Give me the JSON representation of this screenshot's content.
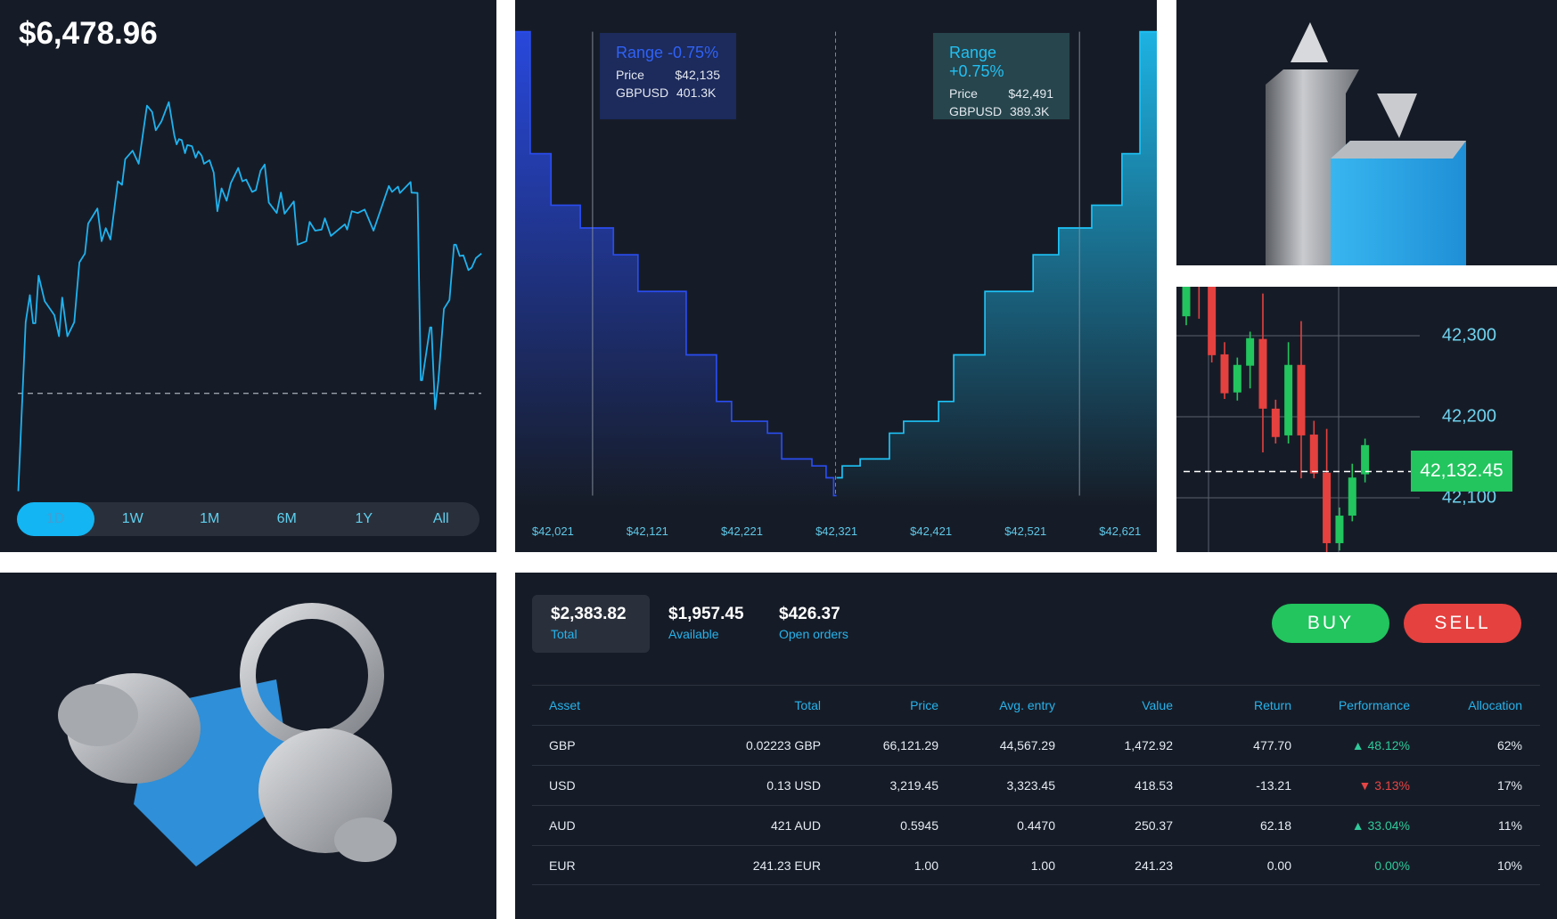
{
  "portfolio": {
    "balance": "$6,478.96",
    "timeframes": [
      "1D",
      "1W",
      "1M",
      "6M",
      "1Y",
      "All"
    ],
    "active_timeframe": "1D",
    "line_color": "#1fb2ef"
  },
  "line_chart": {
    "type": "line",
    "points": [
      [
        0,
        0.5
      ],
      [
        1.6,
        48.5
      ],
      [
        2.5,
        56.2
      ],
      [
        3.2,
        48.2
      ],
      [
        3.7,
        48.2
      ],
      [
        4.4,
        61.7
      ],
      [
        5.7,
        54.5
      ],
      [
        7.8,
        50.5
      ],
      [
        8.8,
        44.5
      ],
      [
        9.5,
        55.5
      ],
      [
        10.6,
        44.5
      ],
      [
        12.1,
        48.5
      ],
      [
        13.2,
        65.5
      ],
      [
        14.4,
        68
      ],
      [
        15.1,
        76.5
      ],
      [
        17.1,
        80.8
      ],
      [
        18.0,
        71.5
      ],
      [
        18.9,
        75.2
      ],
      [
        19.9,
        72
      ],
      [
        21.5,
        88.5
      ],
      [
        22.4,
        87.5
      ],
      [
        23.1,
        94.8
      ],
      [
        24.7,
        97.2
      ],
      [
        26.0,
        93.5
      ],
      [
        27.8,
        110
      ],
      [
        28.9,
        108.2
      ],
      [
        29.7,
        103
      ],
      [
        30.9,
        105.5
      ],
      [
        32.5,
        111
      ],
      [
        33.7,
        101.5
      ],
      [
        34.2,
        99
      ],
      [
        34.7,
        100.5
      ],
      [
        35.3,
        100.2
      ],
      [
        36.0,
        96.5
      ],
      [
        36.5,
        98.8
      ],
      [
        37.5,
        98.5
      ],
      [
        38.3,
        95.2
      ],
      [
        38.9,
        97
      ],
      [
        39.6,
        95.8
      ],
      [
        40.1,
        93.5
      ],
      [
        41.3,
        94.5
      ],
      [
        42.2,
        91
      ],
      [
        43.0,
        80
      ],
      [
        43.9,
        86.5
      ],
      [
        45.0,
        83
      ],
      [
        45.9,
        88
      ],
      [
        47.5,
        92.3
      ],
      [
        48.4,
        88.5
      ],
      [
        49.2,
        89
      ],
      [
        50.5,
        85.5
      ],
      [
        51.3,
        86
      ],
      [
        52.3,
        91.5
      ],
      [
        53.2,
        93.3
      ],
      [
        54.1,
        82.5
      ],
      [
        55.8,
        79.5
      ],
      [
        56.7,
        85.3
      ],
      [
        57.5,
        79.3
      ],
      [
        59.5,
        82.8
      ],
      [
        60.3,
        70.5
      ],
      [
        62.2,
        71.5
      ],
      [
        62.9,
        77
      ],
      [
        64.1,
        74.5
      ],
      [
        65.5,
        74.8
      ],
      [
        66.2,
        78
      ],
      [
        67.5,
        73
      ],
      [
        70.5,
        76.3
      ],
      [
        71.0,
        74.8
      ],
      [
        72.0,
        80
      ],
      [
        73.3,
        79.5
      ],
      [
        74.8,
        80.5
      ],
      [
        76.7,
        74.5
      ],
      [
        80.0,
        87.2
      ],
      [
        80.7,
        85.5
      ],
      [
        82.0,
        87
      ],
      [
        82.4,
        85.2
      ],
      [
        84.7,
        88.3
      ],
      [
        84.9,
        85.3
      ],
      [
        86.2,
        85.2
      ],
      [
        86.9,
        32
      ],
      [
        87.2,
        32
      ],
      [
        88.9,
        47
      ],
      [
        89.2,
        47
      ],
      [
        90.0,
        23.8
      ],
      [
        90.7,
        32
      ],
      [
        91.9,
        52.3
      ],
      [
        93.1,
        54.8
      ],
      [
        94.1,
        70.5
      ],
      [
        94.5,
        70.5
      ],
      [
        95.3,
        67.3
      ],
      [
        96.1,
        67.5
      ],
      [
        97.2,
        63.3
      ],
      [
        97.9,
        64
      ],
      [
        98.8,
        66.7
      ],
      [
        100,
        68
      ]
    ],
    "reference_level": 28.3
  },
  "depth_chart": {
    "type": "area",
    "x_ticks": [
      "$42,021",
      "$42,121",
      "$42,221",
      "$42,321",
      "$42,421",
      "$42,521",
      "$42,621"
    ],
    "x_tick_values": [
      42021,
      42121,
      42221,
      42321,
      42421,
      42521,
      42621
    ],
    "bid_edges": [
      41981,
      41997,
      42019,
      42050,
      42085,
      42111,
      42162,
      42194,
      42210,
      42248,
      42263,
      42295,
      42310,
      42318,
      42321
    ],
    "bid_depth": [
      468,
      345,
      293,
      270,
      243,
      206,
      142,
      95,
      75,
      63,
      37,
      30,
      18,
      0
    ],
    "ask_edges": [
      42321,
      42327,
      42346,
      42377,
      42392,
      42429,
      42445,
      42478,
      42529,
      42556,
      42591,
      42623,
      42642,
      42660
    ],
    "ask_depth": [
      18,
      30,
      37,
      63,
      75,
      95,
      142,
      206,
      243,
      270,
      293,
      345,
      468
    ],
    "mid_price": 42320,
    "range_lines": [
      42063,
      42578
    ],
    "bid_color": "#2a4df0",
    "ask_color": "#1ec3f7",
    "tooltip_low": {
      "title": "Range -0.75%",
      "price_label": "Price",
      "price": "$42,135",
      "pair_label": "GBPUSD",
      "volume": "401.3K"
    },
    "tooltip_high": {
      "title": "Range +0.75%",
      "price_label": "Price",
      "price": "$42,491",
      "pair_label": "GBPUSD",
      "volume": "389.3K"
    }
  },
  "candle_chart": {
    "type": "candlestick",
    "y_ticks": [
      "42,300",
      "42,200",
      "42,100"
    ],
    "y_tick_values": [
      42300,
      42200,
      42100
    ],
    "current_price": "42,132.45",
    "current_value": 42132.45,
    "up_color": "#22c55e",
    "down_color": "#e5413f",
    "candles": [
      {
        "o": 42324,
        "c": 42363,
        "h": 42380,
        "l": 42313
      },
      {
        "o": 42395,
        "c": 42385,
        "h": 42400,
        "l": 42321
      },
      {
        "o": 42363,
        "c": 42276,
        "h": 42370,
        "l": 42267
      },
      {
        "o": 42277,
        "c": 42229,
        "h": 42292,
        "l": 42222
      },
      {
        "o": 42230,
        "c": 42264,
        "h": 42273,
        "l": 42220
      },
      {
        "o": 42263,
        "c": 42297,
        "h": 42305,
        "l": 42235
      },
      {
        "o": 42296,
        "c": 42210,
        "h": 42352,
        "l": 42156
      },
      {
        "o": 42210,
        "c": 42175,
        "h": 42221,
        "l": 42167
      },
      {
        "o": 42177,
        "c": 42264,
        "h": 42292,
        "l": 42167
      },
      {
        "o": 42264,
        "c": 42177,
        "h": 42318,
        "l": 42124
      },
      {
        "o": 42178,
        "c": 42130,
        "h": 42195,
        "l": 42124
      },
      {
        "o": 42131,
        "c": 42044,
        "h": 42185,
        "l": 42033
      },
      {
        "o": 42044,
        "c": 42078,
        "h": 42088,
        "l": 42035
      },
      {
        "o": 42078,
        "c": 42125,
        "h": 42142,
        "l": 42071
      },
      {
        "o": 42129,
        "c": 42165,
        "h": 42173,
        "l": 42119
      }
    ]
  },
  "summary": [
    {
      "value": "$2,383.82",
      "label": "Total"
    },
    {
      "value": "$1,957.45",
      "label": "Available"
    },
    {
      "value": "$426.37",
      "label": "Open orders"
    }
  ],
  "actions": {
    "buy": "BUY",
    "sell": "SELL",
    "buy_color": "#22c55e",
    "sell_color": "#e5413f"
  },
  "table": {
    "headers": [
      "Asset",
      "Total",
      "Price",
      "Avg. entry",
      "Value",
      "Return",
      "Performance",
      "Allocation"
    ],
    "rows": [
      {
        "asset": "GBP",
        "total": "0.02223 GBP",
        "price": "66,121.29",
        "avg": "44,567.29",
        "value": "1,472.92",
        "return": "477.70",
        "perf": "48.12%",
        "dir": "up",
        "alloc": "62%"
      },
      {
        "asset": "USD",
        "total": "0.13 USD",
        "price": "3,219.45",
        "avg": "3,323.45",
        "value": "418.53",
        "return": "-13.21",
        "perf": "3.13%",
        "dir": "down",
        "alloc": "17%"
      },
      {
        "asset": "AUD",
        "total": "421 AUD",
        "price": "0.5945",
        "avg": "0.4470",
        "value": "250.37",
        "return": "62.18",
        "perf": "33.04%",
        "dir": "up",
        "alloc": "11%"
      },
      {
        "asset": "EUR",
        "total": "241.23 EUR",
        "price": "1.00",
        "avg": "1.00",
        "value": "241.23",
        "return": "0.00",
        "perf": "0.00%",
        "dir": "flat",
        "alloc": "10%"
      }
    ]
  }
}
